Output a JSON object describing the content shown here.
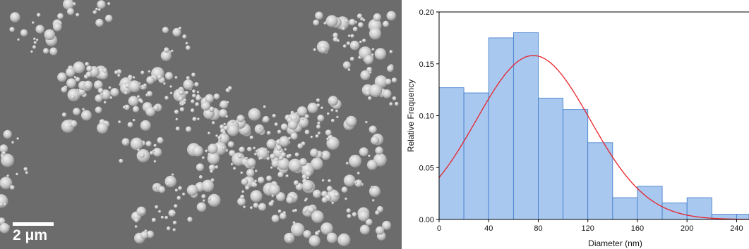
{
  "micrograph": {
    "scale_label": "2 μm",
    "background_color": "#6c6c6c",
    "particle_color": "#c9c9c9"
  },
  "chart_data": {
    "type": "bar",
    "subtype": "histogram",
    "title": "",
    "xlabel": "Diameter (nm)",
    "ylabel": "Relative Frequency",
    "bin_width": 20,
    "bins": [
      {
        "start": 0,
        "end": 20,
        "value": 0.127
      },
      {
        "start": 20,
        "end": 40,
        "value": 0.122
      },
      {
        "start": 40,
        "end": 60,
        "value": 0.175
      },
      {
        "start": 60,
        "end": 80,
        "value": 0.18
      },
      {
        "start": 80,
        "end": 100,
        "value": 0.117
      },
      {
        "start": 100,
        "end": 120,
        "value": 0.106
      },
      {
        "start": 120,
        "end": 140,
        "value": 0.074
      },
      {
        "start": 140,
        "end": 160,
        "value": 0.021
      },
      {
        "start": 160,
        "end": 180,
        "value": 0.032
      },
      {
        "start": 180,
        "end": 200,
        "value": 0.016
      },
      {
        "start": 200,
        "end": 220,
        "value": 0.021
      },
      {
        "start": 220,
        "end": 240,
        "value": 0.005
      },
      {
        "start": 240,
        "end": 260,
        "value": 0.005
      }
    ],
    "fit_curve": {
      "type": "gaussian",
      "mean": 76,
      "sigma": 46,
      "peak": 0.158
    },
    "xlim": [
      0,
      250
    ],
    "ylim": [
      0,
      0.2
    ],
    "xticks": [
      "0",
      "40",
      "80",
      "120",
      "160",
      "200",
      "240"
    ],
    "yticks": [
      "0.00",
      "0.05",
      "0.10",
      "0.15",
      "0.20"
    ],
    "bar_color": "#a9c8f0",
    "bar_edge_color": "#3a78c8",
    "curve_color": "#e8222a",
    "grid": false
  }
}
